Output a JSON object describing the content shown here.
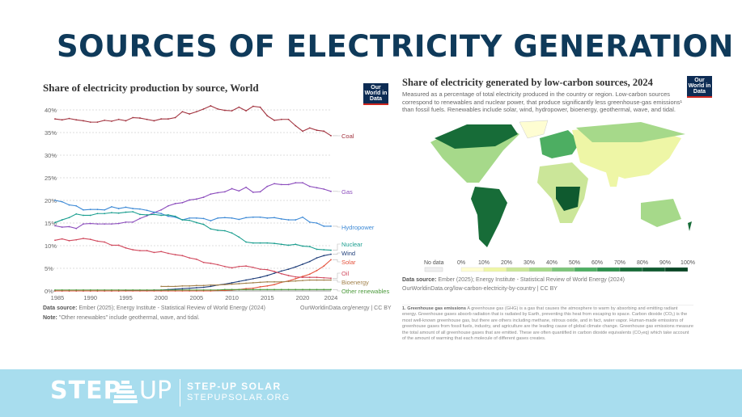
{
  "slide_title": "SOURCES OF ELECTRICITY GENERATION",
  "owid_logo": "Our World in Data",
  "chart_data": [
    {
      "type": "line",
      "title": "Share of electricity production by source, World",
      "x": [
        1985,
        1986,
        1987,
        1988,
        1989,
        1990,
        1991,
        1992,
        1993,
        1994,
        1995,
        1996,
        1997,
        1998,
        1999,
        2000,
        2001,
        2002,
        2003,
        2004,
        2005,
        2006,
        2007,
        2008,
        2009,
        2010,
        2011,
        2012,
        2013,
        2014,
        2015,
        2016,
        2017,
        2018,
        2019,
        2020,
        2021,
        2022,
        2023,
        2024
      ],
      "xticks": [
        "1985",
        "1990",
        "1995",
        "2000",
        "2005",
        "2010",
        "2015",
        "2020",
        "2024"
      ],
      "yticks": [
        "0%",
        "5%",
        "10%",
        "15%",
        "20%",
        "25%",
        "30%",
        "35%",
        "40%"
      ],
      "ylim": [
        0,
        41
      ],
      "grid": "horizontal dashed",
      "legend": "right-end labels",
      "series": [
        {
          "name": "Coal",
          "color": "#a2333f",
          "values": [
            38.0,
            37.8,
            38.1,
            37.8,
            37.6,
            37.3,
            37.3,
            37.7,
            37.5,
            37.9,
            37.6,
            38.3,
            38.2,
            37.9,
            37.6,
            38.0,
            38.0,
            38.3,
            39.6,
            39.1,
            39.6,
            40.2,
            40.9,
            40.2,
            39.9,
            39.8,
            40.6,
            39.8,
            40.8,
            40.6,
            38.7,
            37.7,
            37.9,
            37.9,
            36.5,
            35.3,
            36.0,
            35.5,
            35.3,
            34.3
          ]
        },
        {
          "name": "Gas",
          "color": "#8c4dbd",
          "values": [
            14.4,
            14.1,
            14.2,
            13.8,
            14.8,
            14.9,
            14.8,
            14.8,
            14.8,
            14.9,
            15.2,
            15.2,
            16.0,
            16.6,
            17.3,
            17.9,
            18.8,
            19.3,
            19.5,
            20.1,
            20.3,
            20.7,
            21.4,
            21.7,
            21.9,
            22.6,
            22.1,
            22.9,
            21.8,
            21.9,
            23.1,
            23.7,
            23.5,
            23.5,
            23.9,
            23.9,
            23.1,
            22.8,
            22.5,
            22.0
          ]
        },
        {
          "name": "Hydropower",
          "color": "#3e8ad6",
          "values": [
            20.0,
            19.7,
            19.0,
            18.8,
            17.9,
            18.0,
            18.0,
            17.9,
            18.6,
            18.2,
            18.5,
            18.2,
            18.1,
            17.8,
            17.4,
            17.1,
            16.5,
            16.3,
            15.7,
            16.1,
            16.1,
            16.0,
            15.5,
            16.1,
            16.2,
            16.1,
            15.8,
            16.2,
            16.3,
            16.3,
            16.1,
            16.2,
            15.9,
            15.7,
            15.7,
            16.3,
            15.2,
            15.0,
            14.3,
            14.3
          ]
        },
        {
          "name": "Nuclear",
          "color": "#1a9e8f",
          "values": [
            15.1,
            15.7,
            16.2,
            17.0,
            16.7,
            16.7,
            17.1,
            17.1,
            17.3,
            17.2,
            17.4,
            17.5,
            16.9,
            16.8,
            16.9,
            16.7,
            16.8,
            16.5,
            15.7,
            15.6,
            15.1,
            14.7,
            13.7,
            13.4,
            13.3,
            12.8,
            11.9,
            10.8,
            10.6,
            10.6,
            10.6,
            10.5,
            10.3,
            10.1,
            10.3,
            9.9,
            9.8,
            9.2,
            9.1,
            9.0
          ]
        },
        {
          "name": "Wind",
          "color": "#1f3e7a",
          "values": [
            0,
            0,
            0,
            0,
            0,
            0,
            0,
            0,
            0,
            0,
            0.1,
            0.1,
            0.1,
            0.1,
            0.2,
            0.2,
            0.3,
            0.4,
            0.5,
            0.6,
            0.7,
            0.8,
            1.0,
            1.3,
            1.5,
            1.8,
            2.1,
            2.4,
            2.7,
            3.0,
            3.4,
            3.9,
            4.4,
            4.8,
            5.3,
            5.9,
            6.5,
            7.3,
            7.8,
            8.1
          ]
        },
        {
          "name": "Solar",
          "color": "#e5533d",
          "values": [
            0,
            0,
            0,
            0,
            0,
            0,
            0,
            0,
            0,
            0,
            0,
            0,
            0,
            0,
            0,
            0,
            0,
            0,
            0,
            0,
            0,
            0,
            0,
            0.1,
            0.1,
            0.2,
            0.3,
            0.5,
            0.6,
            0.9,
            1.1,
            1.4,
            1.9,
            2.2,
            2.7,
            3.2,
            3.7,
            4.5,
            5.5,
            6.9
          ]
        },
        {
          "name": "Oil",
          "color": "#d14a5e",
          "values": [
            11.2,
            11.5,
            11.1,
            11.3,
            11.6,
            11.4,
            11.0,
            10.8,
            10.1,
            10.1,
            9.5,
            9.1,
            8.9,
            8.9,
            8.5,
            8.7,
            8.3,
            8.0,
            7.8,
            7.3,
            7.0,
            6.3,
            6.1,
            5.8,
            5.4,
            5.1,
            5.4,
            5.5,
            5.2,
            4.8,
            4.7,
            4.3,
            3.8,
            3.4,
            3.1,
            3.0,
            3.0,
            3.0,
            2.9,
            2.8
          ]
        },
        {
          "name": "Bioenergy",
          "color": "#a2804a",
          "values": [
            null,
            null,
            null,
            null,
            null,
            null,
            null,
            null,
            null,
            null,
            null,
            null,
            null,
            null,
            null,
            1.0,
            1.0,
            1.0,
            1.1,
            1.1,
            1.2,
            1.2,
            1.3,
            1.3,
            1.4,
            1.5,
            1.6,
            1.7,
            1.8,
            1.9,
            2.0,
            2.0,
            2.0,
            2.1,
            2.2,
            2.3,
            2.4,
            2.4,
            2.4,
            2.4
          ]
        },
        {
          "name": "Other renewables",
          "color": "#4c9a3c",
          "values": [
            0.2,
            0.2,
            0.2,
            0.2,
            0.2,
            0.2,
            0.2,
            0.2,
            0.2,
            0.2,
            0.2,
            0.2,
            0.2,
            0.2,
            0.2,
            0.2,
            0.2,
            0.2,
            0.2,
            0.2,
            0.2,
            0.2,
            0.2,
            0.2,
            0.3,
            0.3,
            0.3,
            0.3,
            0.3,
            0.3,
            0.3,
            0.3,
            0.3,
            0.3,
            0.3,
            0.3,
            0.3,
            0.3,
            0.3,
            0.3
          ]
        }
      ],
      "source_label": "Data source:",
      "source": "Ember (2025); Energy Institute - Statistical Review of World Energy (2024)",
      "url": "OurWorldinData.org/energy | CC BY",
      "note_label": "Note:",
      "note": "\"Other renewables\" include geothermal, wave, and tidal."
    },
    {
      "type": "choropleth map",
      "title": "Share of electricity generated by low-carbon sources, 2024",
      "subtitle": "Measured as a percentage of total electricity produced in the country or region. Low-carbon sources correspond to renewables and nuclear power, that produce significantly less greenhouse-gas emissions¹ than fossil fuels. Renewables include solar, wind, hydropower, bioenergy, geothermal, wave, and tidal.",
      "legend": {
        "no_data": "No data",
        "ticks": [
          "0%",
          "10%",
          "20%",
          "30%",
          "40%",
          "50%",
          "60%",
          "70%",
          "80%",
          "90%",
          "100%"
        ],
        "colors": [
          "#fefdd2",
          "#eef6a6",
          "#cbe699",
          "#a6d98a",
          "#7cc57a",
          "#4dae62",
          "#2c8f4c",
          "#176c38",
          "#0f5a2f",
          "#084524"
        ]
      },
      "source_label": "Data source:",
      "source": "Ember (2025); Energy Institute - Statistical Review of World Energy (2024)",
      "url": "OurWorldinData.org/low-carbon-electricity-by-country | CC BY",
      "footnote_label": "1. Greenhouse gas emissions",
      "footnote": "A greenhouse gas (GHG) is a gas that causes the atmosphere to warm by absorbing and emitting radiant energy. Greenhouse gases absorb radiation that is radiated by Earth, preventing this heat from escaping to space. Carbon dioxide (CO₂) is the most well-known greenhouse gas, but there are others including methane, nitrous oxide, and in fact, water vapor. Human-made emissions of greenhouse gases from fossil fuels, industry, and agriculture are the leading cause of global climate change. Greenhouse gas emissions measure the total amount of all greenhouse gases that are emitted. These are often quantified in carbon dioxide equivalents (CO₂eq) which take account of the amount of warming that each molecule of different gases creates."
    }
  ],
  "footer": {
    "logo_step": "STEP",
    "logo_up": "UP",
    "brand_name": "STEP-UP SOLAR",
    "brand_url": "STEPUPSOLAR.ORG",
    "bg": "#a8ddee"
  }
}
